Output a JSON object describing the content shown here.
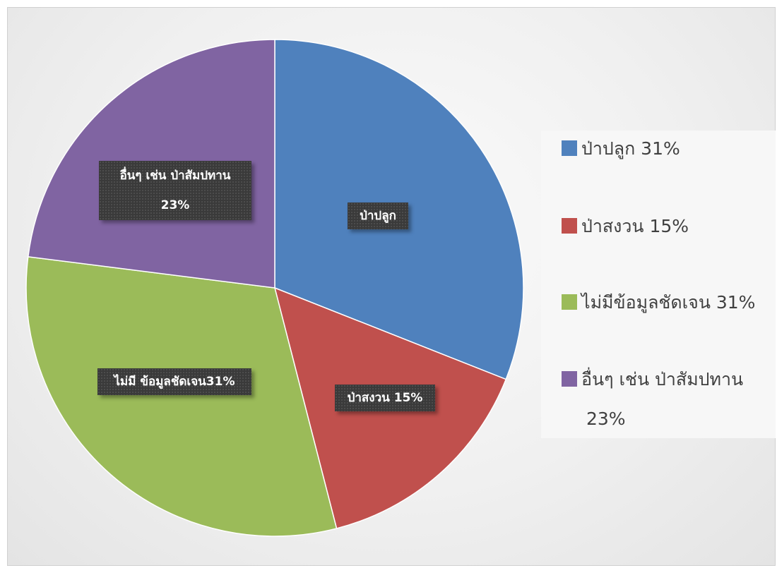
{
  "chart_data": {
    "type": "pie",
    "title": "",
    "slices": [
      {
        "label": "ป่าปลูก",
        "value": 31,
        "color": "#4f81bd",
        "legend": "ป่าปลูก 31%",
        "data_label": "ป่าปลูก"
      },
      {
        "label": "ป่าสงวน",
        "value": 15,
        "color": "#c0504d",
        "legend": "ป่าสงวน 15%",
        "data_label": "ป่าสงวน 15%"
      },
      {
        "label": "ไม่มีข้อมูลชัดเจน",
        "value": 31,
        "color": "#9bbb59",
        "legend": "ไม่มีข้อมูลชัดเจน 31%",
        "data_label": "ไม่มี ข้อมูลชัดเจน31%"
      },
      {
        "label": "อื่นๆ เช่น ป่าสัมปทาน",
        "value": 23,
        "color": "#8064a2",
        "legend_line1": "อื่นๆ เช่น ป่าสัมปทาน",
        "legend_line2": "23%",
        "data_label_line1": "อื่นๆ เช่น ป่าสัมปทาน",
        "data_label_line2": "23%"
      }
    ],
    "legend_position": "right"
  }
}
